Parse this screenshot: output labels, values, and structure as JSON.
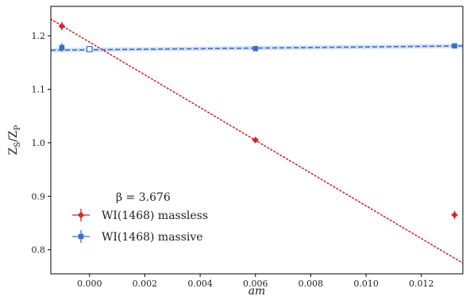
{
  "chart_data": {
    "type": "scatter",
    "xlabel": "am",
    "ylabel": "Z_S/Z_P",
    "ylabel_main": "Z",
    "ylabel_sub1": "S",
    "ylabel_sep": "/Z",
    "ylabel_sub2": "P",
    "xlim": [
      -0.0014,
      0.0135
    ],
    "ylim": [
      0.755,
      1.255
    ],
    "xticks": [
      0.0,
      0.002,
      0.004,
      0.006,
      0.008,
      0.01,
      0.012
    ],
    "xtick_labels": [
      "0.000",
      "0.002",
      "0.004",
      "0.006",
      "0.008",
      "0.010",
      "0.012"
    ],
    "yticks": [
      0.8,
      0.9,
      1.0,
      1.1,
      1.2
    ],
    "ytick_labels": [
      "0.8",
      "0.9",
      "1.0",
      "1.1",
      "1.2"
    ],
    "legend_title": "β = 3.676",
    "legend_position": "lower-left",
    "grid": false,
    "series": [
      {
        "name": "WI(1468) massless",
        "color": "#d62728",
        "marker": "diamond",
        "points": [
          {
            "x": -0.001,
            "y": 1.218,
            "yerr": 0.008
          },
          {
            "x": 0.006,
            "y": 1.005,
            "yerr": 0.003
          },
          {
            "x": 0.0132,
            "y": 0.865,
            "yerr": 0.008
          }
        ],
        "fit": {
          "style": "dotted",
          "x": [
            -0.0014,
            0.0135
          ],
          "y": [
            1.231,
            0.775
          ]
        }
      },
      {
        "name": "WI(1468) massive",
        "color": "#3a6fc4",
        "marker": "square",
        "points": [
          {
            "x": -0.001,
            "y": 1.178,
            "yerr": 0.008
          },
          {
            "x": 0.006,
            "y": 1.176,
            "yerr": 0.003
          },
          {
            "x": 0.0132,
            "y": 1.181,
            "yerr": 0.003
          }
        ],
        "extrapolated_point": {
          "x": 0.0,
          "y": 1.175,
          "yerr": 0.004
        },
        "fit": {
          "style": "dashed",
          "x": [
            -0.0014,
            0.0135
          ],
          "y": [
            1.173,
            1.181
          ],
          "band": 0.004
        }
      }
    ]
  }
}
